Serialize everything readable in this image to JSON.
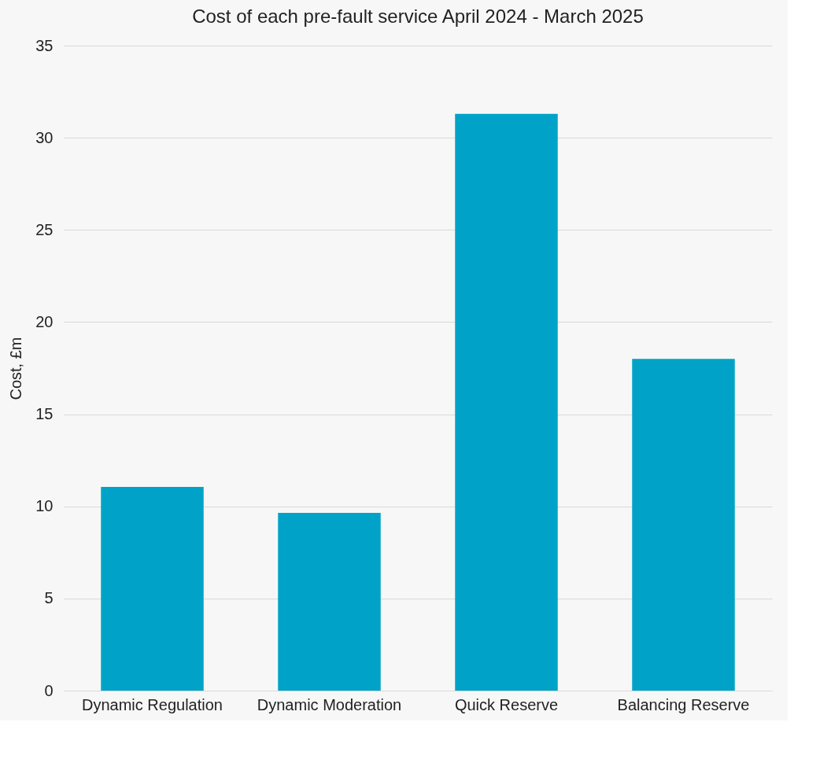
{
  "chart_data": {
    "type": "bar",
    "title": "Cost of each pre-fault service April 2024 - March 2025",
    "ylabel": "Cost, £m",
    "categories": [
      "Dynamic Regulation",
      "Dynamic Moderation",
      "Quick Reserve",
      "Balancing Reserve"
    ],
    "values": [
      11.05,
      9.65,
      31.3,
      18.0
    ],
    "color": "#00a3c7",
    "ylim": [
      0,
      35
    ],
    "yticks": [
      0,
      5,
      10,
      15,
      20,
      25,
      30,
      35
    ],
    "grid": "y"
  }
}
